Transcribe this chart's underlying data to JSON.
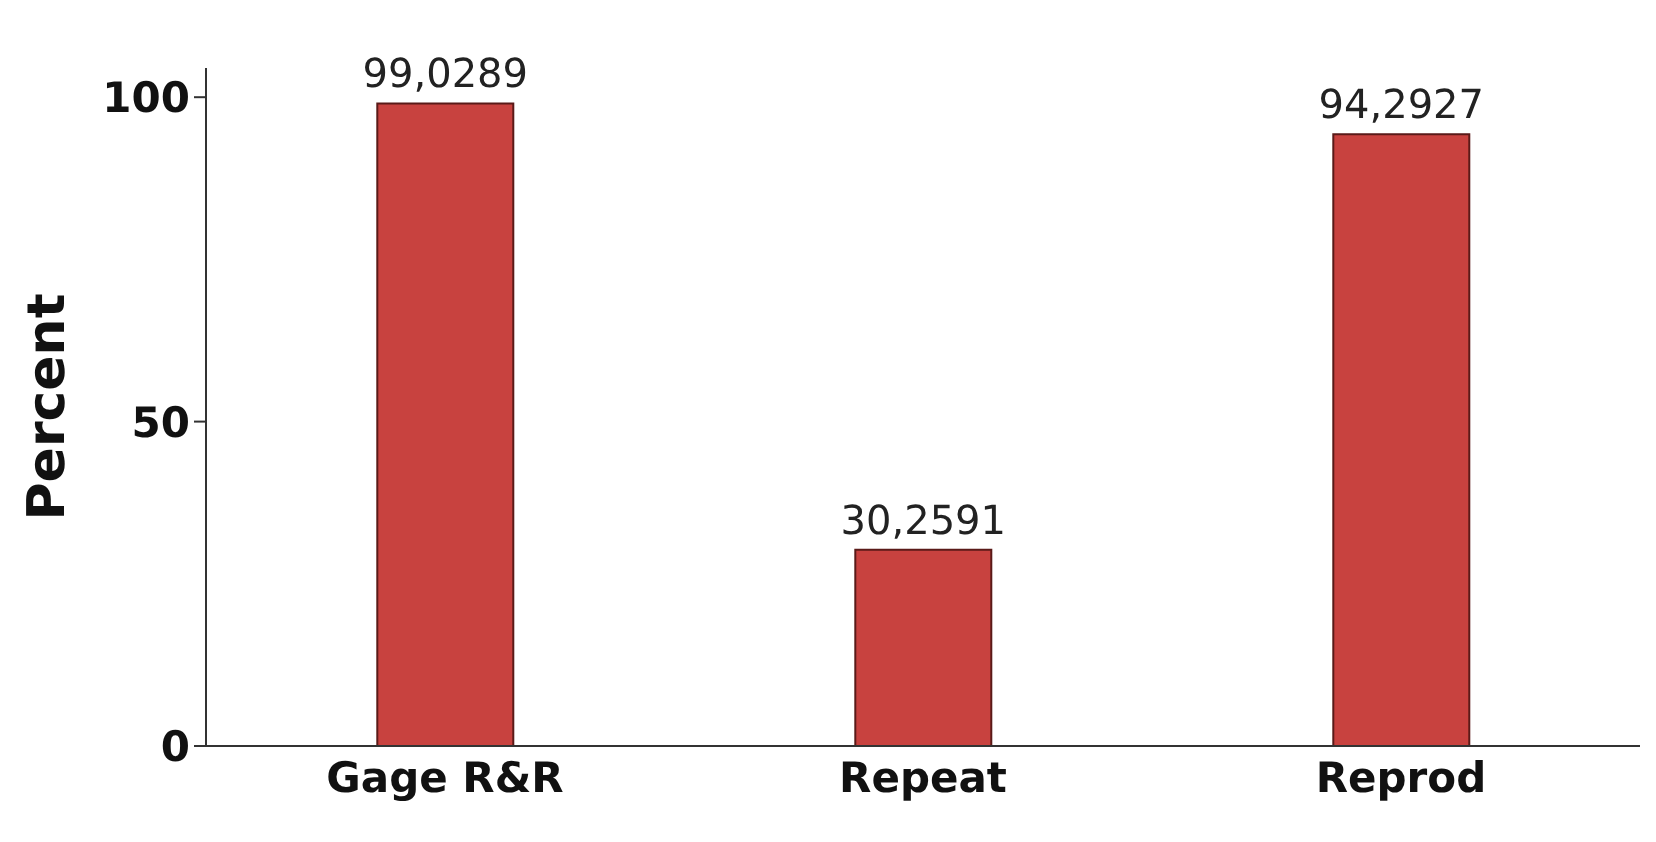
{
  "chart_data": {
    "type": "bar",
    "ylabel": "Percent",
    "categories": [
      "Gage R&R",
      "Repeat",
      "Reprod"
    ],
    "values": [
      99.0289,
      30.2591,
      94.2927
    ],
    "value_labels": [
      "99,0289",
      "30,2591",
      "94,2927"
    ],
    "color": "#c8423f",
    "ylim": [
      0,
      104.5
    ],
    "yticks": [
      0,
      50,
      100
    ],
    "grid": false
  }
}
